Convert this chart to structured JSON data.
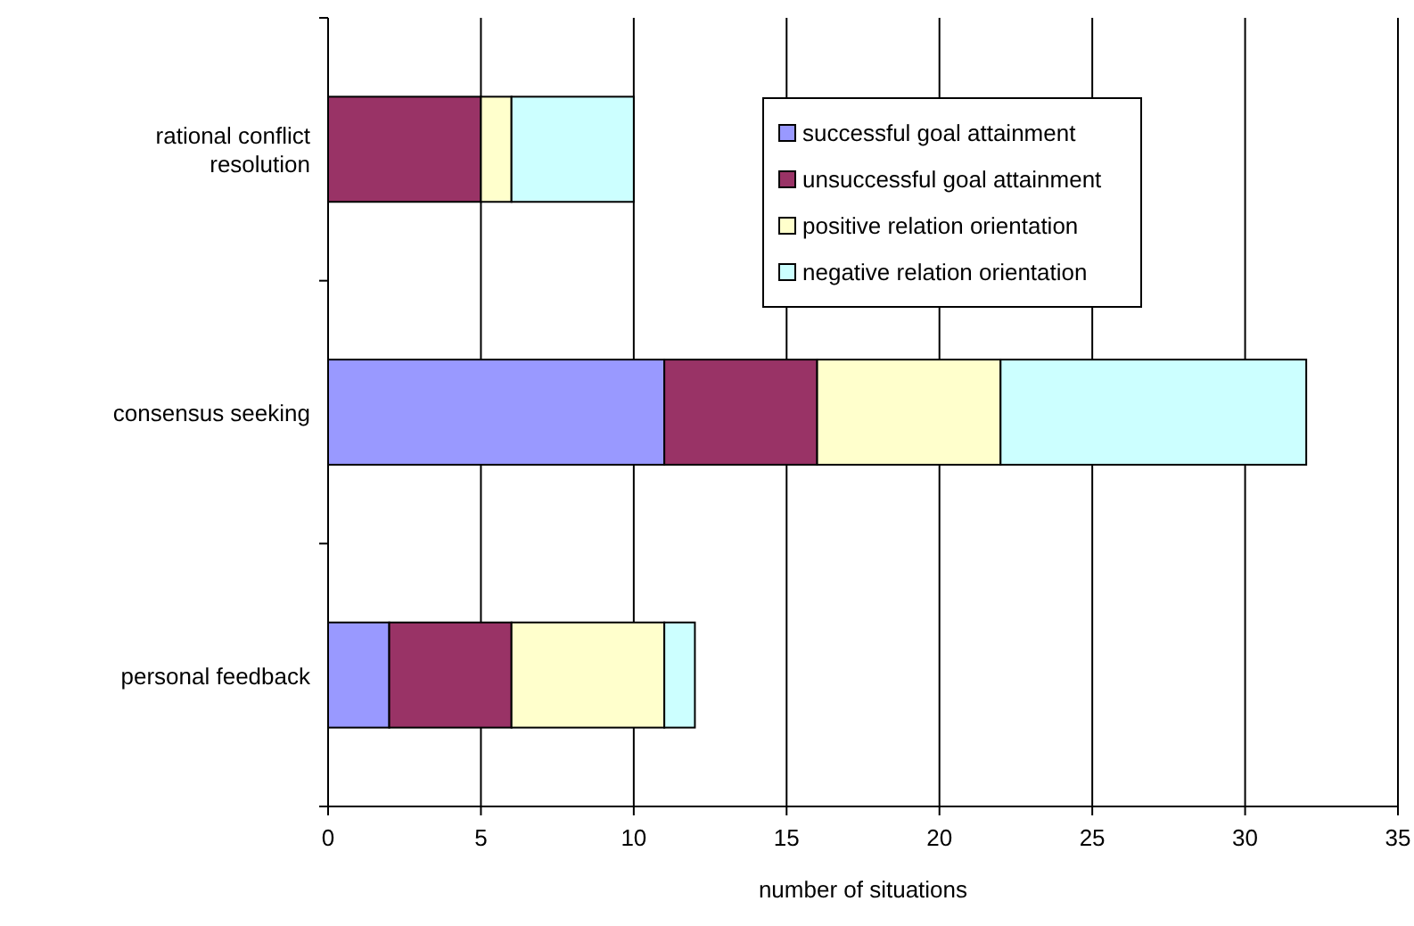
{
  "chart_data": {
    "type": "bar",
    "orientation": "horizontal",
    "stacked": true,
    "xlabel": "number of situations",
    "categories": [
      "rational conflict resolution",
      "consensus seeking",
      "personal feedback"
    ],
    "series": [
      {
        "name": "successful goal attainment",
        "color": "#9999ff",
        "values": [
          0,
          11,
          2
        ]
      },
      {
        "name": "unsuccessful goal attainment",
        "color": "#993366",
        "values": [
          5,
          5,
          4
        ]
      },
      {
        "name": "positive relation orientation",
        "color": "#ffffcc",
        "values": [
          1,
          6,
          5
        ]
      },
      {
        "name": "negative relation orientation",
        "color": "#ccffff",
        "values": [
          4,
          10,
          1
        ]
      }
    ],
    "xlim": [
      0,
      35
    ],
    "xticks": [
      0,
      5,
      10,
      15,
      20,
      25,
      30,
      35
    ],
    "grid": "x",
    "legend": "top right"
  }
}
